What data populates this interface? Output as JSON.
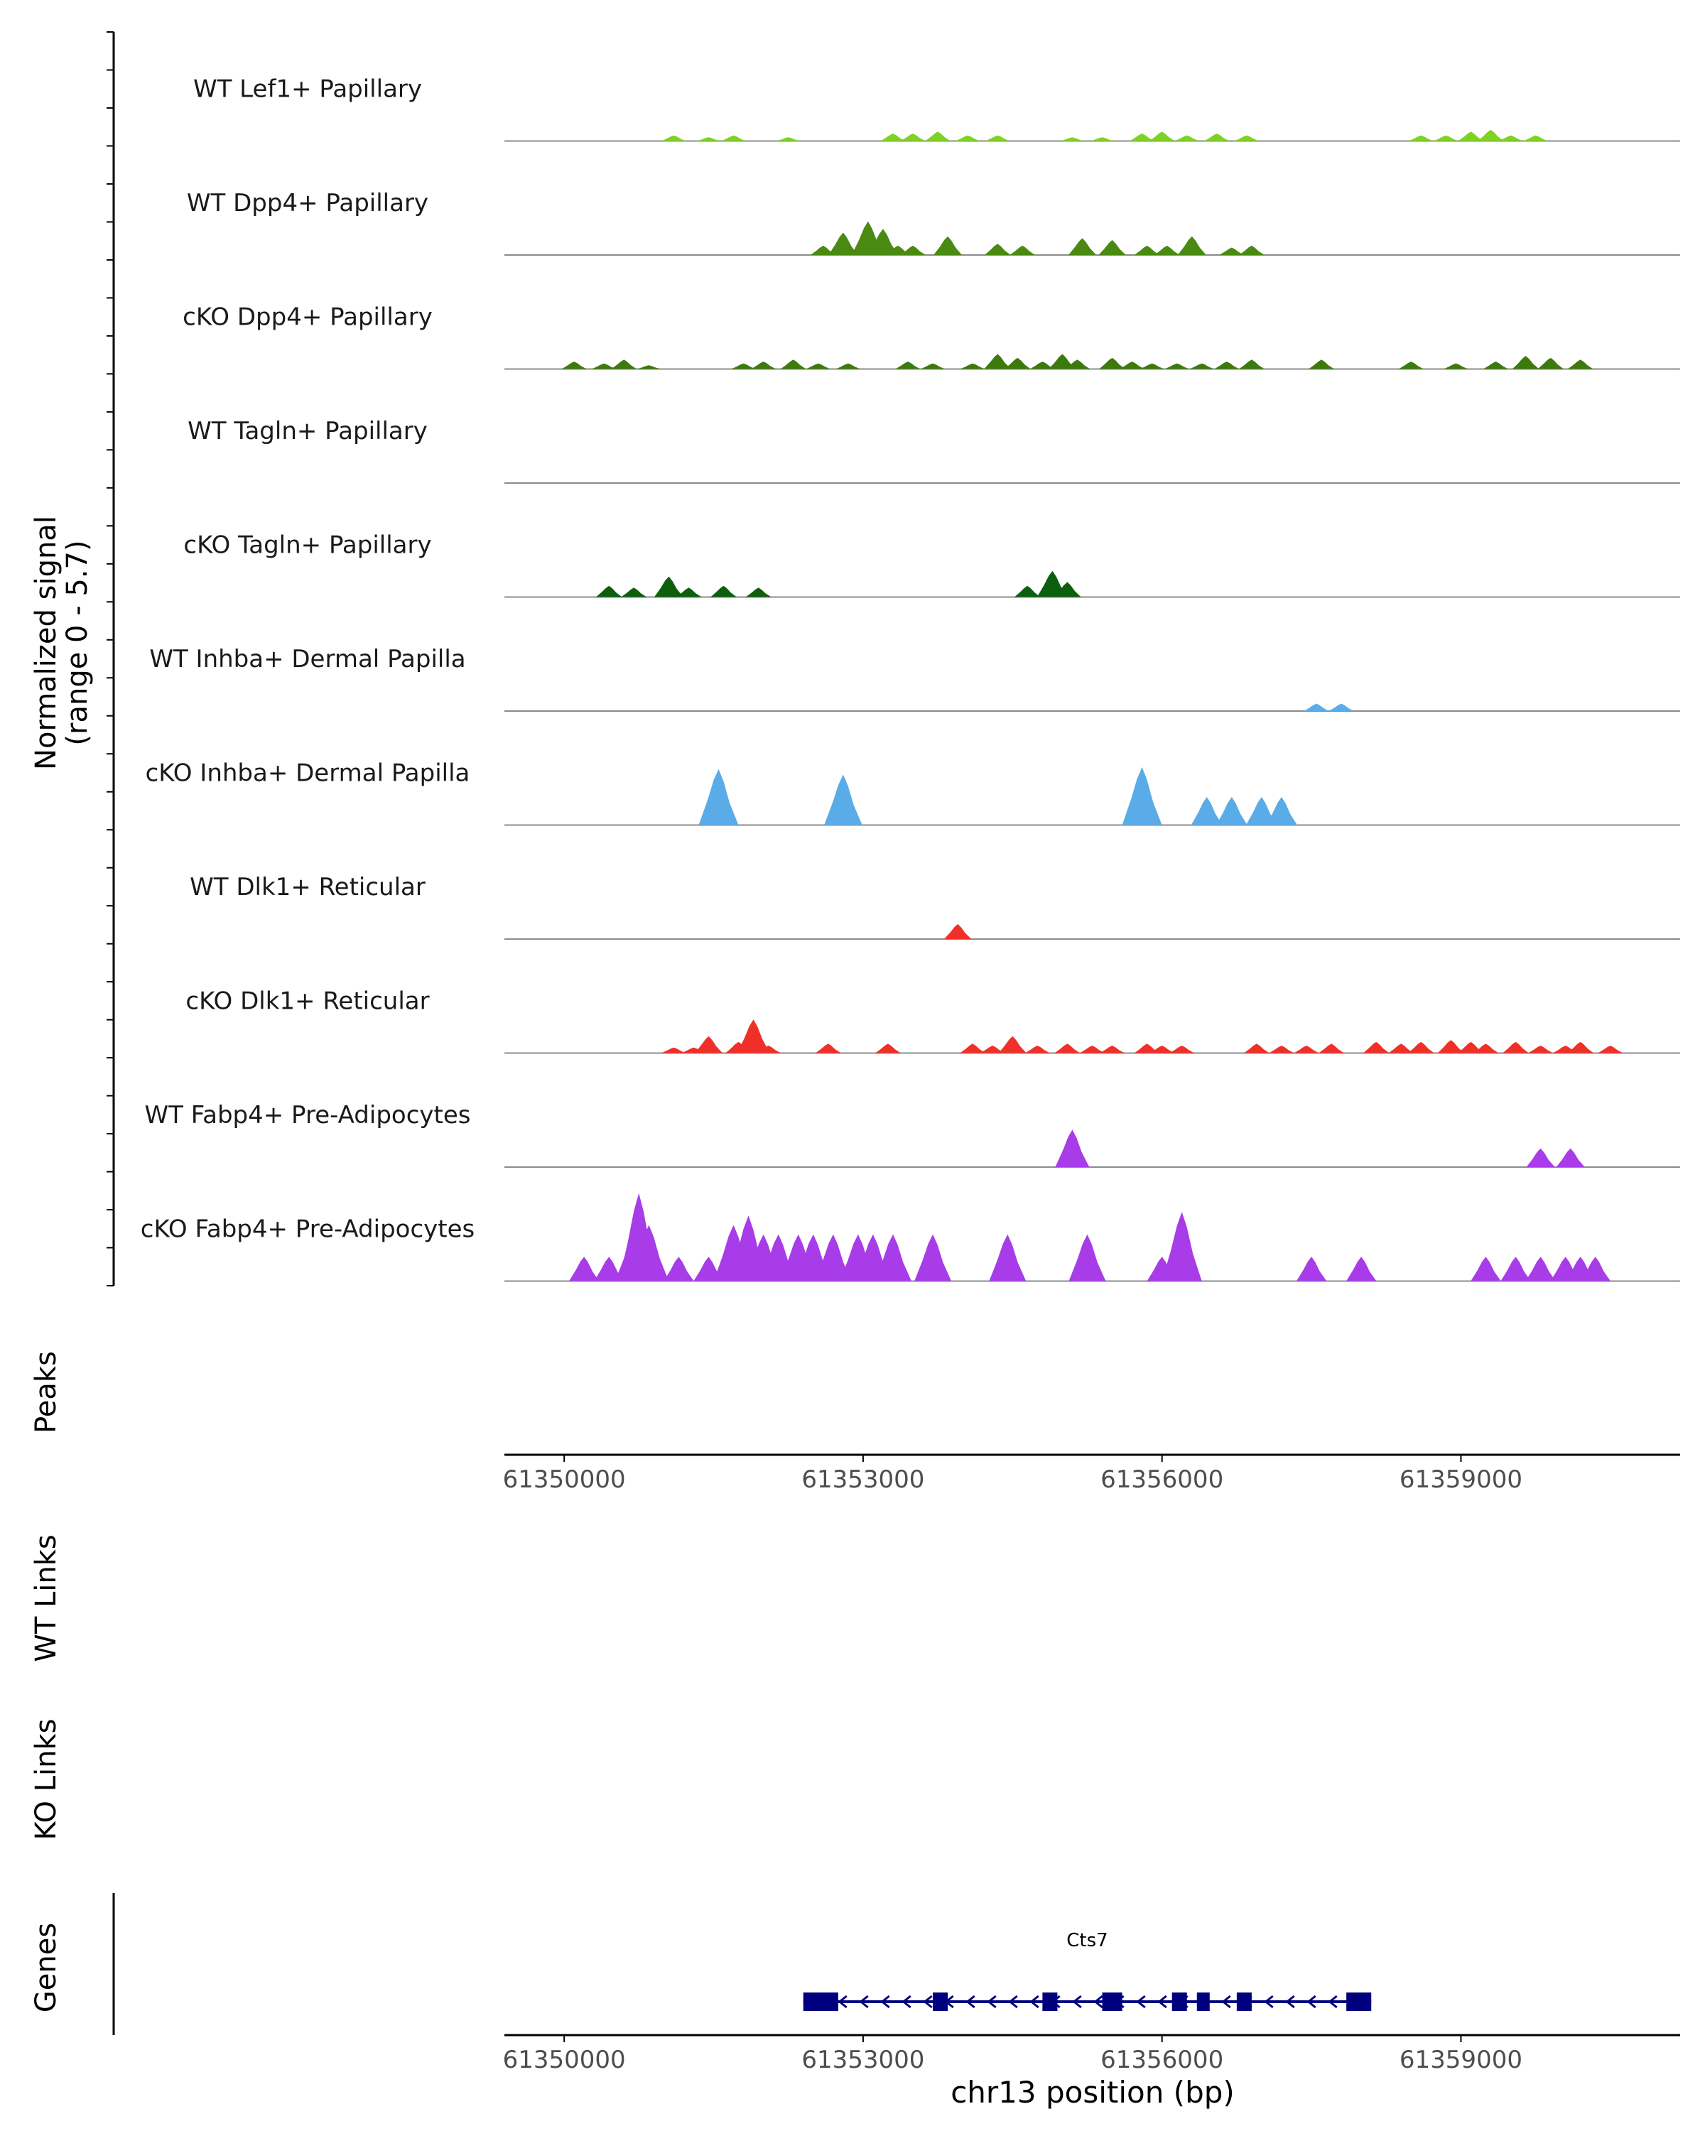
{
  "chart_data": {
    "type": "area",
    "title": "",
    "ylabel": "Normalized signal",
    "ylabel_range": "(range 0 - 5.7)",
    "xlabel": "chr13 position (bp)",
    "xlim": [
      61349400,
      61361200
    ],
    "ylim": [
      0,
      5.7
    ],
    "x_ticks": [
      61350000,
      61353000,
      61356000,
      61359000
    ],
    "x_tick_labels": [
      "61350000",
      "61353000",
      "61356000",
      "61359000"
    ],
    "side_labels": {
      "peaks": "Peaks",
      "wt_links": "WT Links",
      "ko_links": "KO Links",
      "genes": "Genes"
    },
    "series": [
      {
        "name": "WT Lef1+ Papillary",
        "color": "#7ed321",
        "peaks": [
          [
            61351100,
            0.3
          ],
          [
            61351450,
            0.2
          ],
          [
            61351700,
            0.3
          ],
          [
            61352250,
            0.2
          ],
          [
            61353300,
            0.4
          ],
          [
            61353500,
            0.4
          ],
          [
            61353750,
            0.5
          ],
          [
            61354050,
            0.3
          ],
          [
            61354350,
            0.3
          ],
          [
            61355100,
            0.2
          ],
          [
            61355400,
            0.2
          ],
          [
            61355800,
            0.4
          ],
          [
            61356000,
            0.5
          ],
          [
            61356250,
            0.3
          ],
          [
            61356550,
            0.4
          ],
          [
            61356850,
            0.3
          ],
          [
            61358600,
            0.3
          ],
          [
            61358850,
            0.3
          ],
          [
            61359100,
            0.5
          ],
          [
            61359300,
            0.6
          ],
          [
            61359500,
            0.3
          ],
          [
            61359750,
            0.3
          ]
        ]
      },
      {
        "name": "WT Dpp4+ Papillary",
        "color": "#4a8a12",
        "peaks": [
          [
            61352600,
            0.5
          ],
          [
            61352800,
            1.2
          ],
          [
            61353050,
            1.8
          ],
          [
            61353200,
            1.4
          ],
          [
            61353350,
            0.5
          ],
          [
            61353500,
            0.5
          ],
          [
            61353850,
            1.0
          ],
          [
            61354350,
            0.6
          ],
          [
            61354600,
            0.5
          ],
          [
            61355200,
            0.9
          ],
          [
            61355500,
            0.8
          ],
          [
            61355850,
            0.5
          ],
          [
            61356050,
            0.5
          ],
          [
            61356300,
            1.0
          ],
          [
            61356700,
            0.4
          ],
          [
            61356900,
            0.5
          ]
        ]
      },
      {
        "name": "cKO Dpp4+ Papillary",
        "color": "#3c7a0c",
        "peaks": [
          [
            61350100,
            0.4
          ],
          [
            61350400,
            0.3
          ],
          [
            61350600,
            0.5
          ],
          [
            61350850,
            0.2
          ],
          [
            61351800,
            0.3
          ],
          [
            61352000,
            0.4
          ],
          [
            61352300,
            0.5
          ],
          [
            61352550,
            0.3
          ],
          [
            61352850,
            0.3
          ],
          [
            61353450,
            0.4
          ],
          [
            61353700,
            0.3
          ],
          [
            61354100,
            0.3
          ],
          [
            61354350,
            0.8
          ],
          [
            61354550,
            0.6
          ],
          [
            61354800,
            0.4
          ],
          [
            61355000,
            0.8
          ],
          [
            61355150,
            0.5
          ],
          [
            61355500,
            0.6
          ],
          [
            61355700,
            0.4
          ],
          [
            61355900,
            0.3
          ],
          [
            61356150,
            0.3
          ],
          [
            61356400,
            0.3
          ],
          [
            61356650,
            0.4
          ],
          [
            61356900,
            0.5
          ],
          [
            61357600,
            0.5
          ],
          [
            61358500,
            0.4
          ],
          [
            61358950,
            0.3
          ],
          [
            61359350,
            0.4
          ],
          [
            61359650,
            0.7
          ],
          [
            61359900,
            0.6
          ],
          [
            61360200,
            0.5
          ]
        ]
      },
      {
        "name": "WT Tagln+ Papillary",
        "color": "#1e6b0a",
        "peaks": []
      },
      {
        "name": "cKO Tagln+ Papillary",
        "color": "#0d5f0d",
        "peaks": [
          [
            61350450,
            0.6
          ],
          [
            61350700,
            0.5
          ],
          [
            61351050,
            1.1
          ],
          [
            61351250,
            0.5
          ],
          [
            61351600,
            0.6
          ],
          [
            61351950,
            0.5
          ],
          [
            61354650,
            0.6
          ],
          [
            61354900,
            1.4
          ],
          [
            61355050,
            0.8
          ]
        ]
      },
      {
        "name": "WT Inhba+ Dermal Papilla",
        "color": "#5aace8",
        "peaks": [
          [
            61357550,
            0.4
          ],
          [
            61357800,
            0.4
          ]
        ]
      },
      {
        "name": "cKO Inhba+ Dermal Papilla",
        "color": "#5aace8",
        "peaks": [
          [
            61351550,
            3.0
          ],
          [
            61352800,
            2.7
          ],
          [
            61355800,
            3.1
          ],
          [
            61356450,
            1.5
          ],
          [
            61356700,
            1.5
          ],
          [
            61357000,
            1.5
          ],
          [
            61357200,
            1.5
          ]
        ]
      },
      {
        "name": "WT Dlk1+ Reticular",
        "color": "#f03028",
        "peaks": [
          [
            61353950,
            0.8
          ]
        ]
      },
      {
        "name": "cKO Dlk1+ Reticular",
        "color": "#f03028",
        "peaks": [
          [
            61351100,
            0.3
          ],
          [
            61351300,
            0.3
          ],
          [
            61351450,
            0.9
          ],
          [
            61351750,
            0.6
          ],
          [
            61351900,
            1.8
          ],
          [
            61352050,
            0.4
          ],
          [
            61352650,
            0.5
          ],
          [
            61353250,
            0.5
          ],
          [
            61354100,
            0.5
          ],
          [
            61354300,
            0.4
          ],
          [
            61354500,
            0.9
          ],
          [
            61354750,
            0.4
          ],
          [
            61355050,
            0.5
          ],
          [
            61355300,
            0.4
          ],
          [
            61355500,
            0.4
          ],
          [
            61355850,
            0.5
          ],
          [
            61356000,
            0.4
          ],
          [
            61356200,
            0.4
          ],
          [
            61356950,
            0.5
          ],
          [
            61357200,
            0.4
          ],
          [
            61357450,
            0.4
          ],
          [
            61357700,
            0.5
          ],
          [
            61358150,
            0.6
          ],
          [
            61358400,
            0.5
          ],
          [
            61358600,
            0.6
          ],
          [
            61358900,
            0.7
          ],
          [
            61359100,
            0.6
          ],
          [
            61359250,
            0.5
          ],
          [
            61359550,
            0.6
          ],
          [
            61359800,
            0.4
          ],
          [
            61360050,
            0.4
          ],
          [
            61360200,
            0.6
          ],
          [
            61360500,
            0.4
          ]
        ]
      },
      {
        "name": "WT Fabp4+ Pre-Adipocytes",
        "color": "#a83ce8",
        "peaks": [
          [
            61355100,
            2.0
          ],
          [
            61359800,
            1.0
          ],
          [
            61360100,
            1.0
          ]
        ]
      },
      {
        "name": "cKO Fabp4+ Pre-Adipocytes",
        "color": "#a83ce8",
        "peaks": [
          [
            61350200,
            1.3
          ],
          [
            61350450,
            1.3
          ],
          [
            61350700,
            2.6
          ],
          [
            61350750,
            4.7
          ],
          [
            61350850,
            3.0
          ],
          [
            61351150,
            1.3
          ],
          [
            61351450,
            1.3
          ],
          [
            61351700,
            3.0
          ],
          [
            61351850,
            3.5
          ],
          [
            61352000,
            2.5
          ],
          [
            61352150,
            2.5
          ],
          [
            61352350,
            2.5
          ],
          [
            61352500,
            2.5
          ],
          [
            61352700,
            2.5
          ],
          [
            61352950,
            2.5
          ],
          [
            61353100,
            2.5
          ],
          [
            61353300,
            2.5
          ],
          [
            61353700,
            2.5
          ],
          [
            61354450,
            2.5
          ],
          [
            61355250,
            2.5
          ],
          [
            61356000,
            1.3
          ],
          [
            61356200,
            3.7
          ],
          [
            61357500,
            1.3
          ],
          [
            61358000,
            1.3
          ],
          [
            61359250,
            1.3
          ],
          [
            61359550,
            1.3
          ],
          [
            61359800,
            1.3
          ],
          [
            61360050,
            1.3
          ],
          [
            61360200,
            1.3
          ],
          [
            61360350,
            1.3
          ]
        ]
      }
    ],
    "genes": [
      {
        "name": "Cts7",
        "start": 61352400,
        "end": 61358100,
        "strand": "-",
        "exons": [
          [
            61352400,
            61352750
          ],
          [
            61353700,
            61353850
          ],
          [
            61354800,
            61354950
          ],
          [
            61355400,
            61355600
          ],
          [
            61356100,
            61356250
          ],
          [
            61356350,
            61356450
          ],
          [
            61356750,
            61356900
          ],
          [
            61357850,
            61358100
          ]
        ]
      }
    ]
  }
}
